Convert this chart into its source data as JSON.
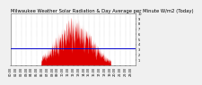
{
  "title": "Milwaukee Weather Solar Radiation & Day Average per Minute W/m2 (Today)",
  "background_color": "#f0f0f0",
  "plot_bg_color": "#ffffff",
  "grid_color": "#aaaaaa",
  "bar_color": "#dd0000",
  "avg_line_color": "#0000cc",
  "avg_line_y": 0.32,
  "y_max": 1.0,
  "y_min": 0.0,
  "n_points": 1440,
  "title_fontsize": 3.8,
  "tick_fontsize": 2.5,
  "ytick_values": [
    0.1,
    0.2,
    0.3,
    0.4,
    0.5,
    0.6,
    0.7,
    0.8,
    0.9,
    1.0
  ],
  "ytick_labels": [
    "1",
    "2",
    "3",
    "4",
    "5",
    "6",
    "7",
    "8",
    "9",
    "10"
  ]
}
